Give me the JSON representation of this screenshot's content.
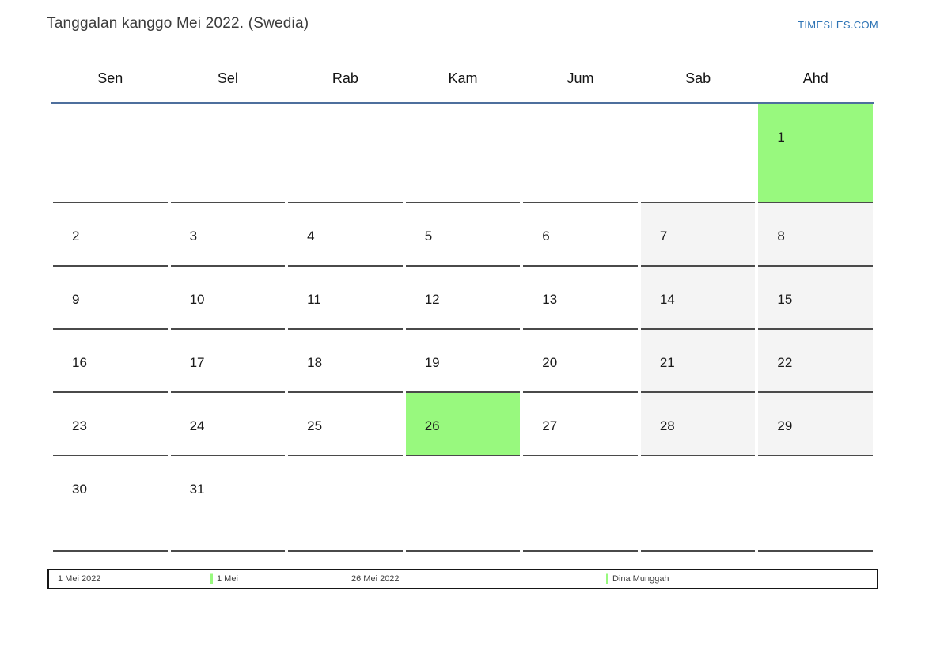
{
  "page": {
    "title": "Tanggalan kanggo Mei 2022. (Swedia)",
    "site_link": "TIMESLES.COM"
  },
  "weekdays": [
    "Sen",
    "Sel",
    "Rab",
    "Kam",
    "Jum",
    "Sab",
    "Ahd"
  ],
  "calendar": {
    "month": "Mei 2022",
    "rows": [
      [
        {
          "day": "",
          "type": "empty"
        },
        {
          "day": "",
          "type": "empty"
        },
        {
          "day": "",
          "type": "empty"
        },
        {
          "day": "",
          "type": "empty"
        },
        {
          "day": "",
          "type": "empty"
        },
        {
          "day": "",
          "type": "empty"
        },
        {
          "day": "1",
          "type": "holiday"
        }
      ],
      [
        {
          "day": "2",
          "type": "normal"
        },
        {
          "day": "3",
          "type": "normal"
        },
        {
          "day": "4",
          "type": "normal"
        },
        {
          "day": "5",
          "type": "normal"
        },
        {
          "day": "6",
          "type": "normal"
        },
        {
          "day": "7",
          "type": "weekend"
        },
        {
          "day": "8",
          "type": "weekend"
        }
      ],
      [
        {
          "day": "9",
          "type": "normal"
        },
        {
          "day": "10",
          "type": "normal"
        },
        {
          "day": "11",
          "type": "normal"
        },
        {
          "day": "12",
          "type": "normal"
        },
        {
          "day": "13",
          "type": "normal"
        },
        {
          "day": "14",
          "type": "weekend"
        },
        {
          "day": "15",
          "type": "weekend"
        }
      ],
      [
        {
          "day": "16",
          "type": "normal"
        },
        {
          "day": "17",
          "type": "normal"
        },
        {
          "day": "18",
          "type": "normal"
        },
        {
          "day": "19",
          "type": "normal"
        },
        {
          "day": "20",
          "type": "normal"
        },
        {
          "day": "21",
          "type": "weekend"
        },
        {
          "day": "22",
          "type": "weekend"
        }
      ],
      [
        {
          "day": "23",
          "type": "normal"
        },
        {
          "day": "24",
          "type": "normal"
        },
        {
          "day": "25",
          "type": "normal"
        },
        {
          "day": "26",
          "type": "holiday"
        },
        {
          "day": "27",
          "type": "normal"
        },
        {
          "day": "28",
          "type": "weekend"
        },
        {
          "day": "29",
          "type": "weekend"
        }
      ],
      [
        {
          "day": "30",
          "type": "normal"
        },
        {
          "day": "31",
          "type": "normal"
        },
        {
          "day": "",
          "type": "empty"
        },
        {
          "day": "",
          "type": "empty"
        },
        {
          "day": "",
          "type": "empty"
        },
        {
          "day": "",
          "type": "empty"
        },
        {
          "day": "",
          "type": "empty"
        }
      ]
    ]
  },
  "legend": {
    "items": [
      {
        "date": "1 Mei 2022",
        "event": "1 Mei"
      },
      {
        "date": "26 Mei 2022",
        "event": "Dina Munggah"
      }
    ]
  },
  "colors": {
    "holiday-green": "#98f97e",
    "weekend-gray": "#f4f4f4",
    "header-line-blue": "#4e6f9d",
    "link-blue": "#2e74b5",
    "border-dark": "#4a4a4a"
  }
}
